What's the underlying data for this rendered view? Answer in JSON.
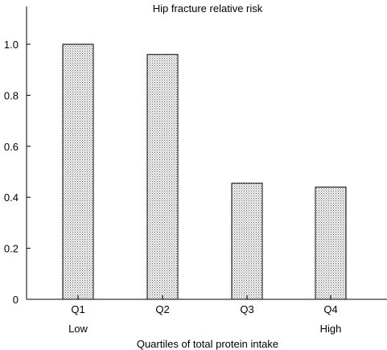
{
  "chart_data": {
    "type": "bar",
    "title": "Hip fracture relative risk",
    "xlabel": "Quartiles of total protein intake",
    "ylabel": "",
    "categories": [
      "Q1",
      "Q2",
      "Q3",
      "Q4"
    ],
    "category_sublabels": [
      "Low",
      "",
      "",
      "High"
    ],
    "values": [
      1.0,
      0.96,
      0.455,
      0.44
    ],
    "ylim": [
      0,
      1.1
    ],
    "yticks": [
      0,
      0.2,
      0.4,
      0.6,
      0.8,
      1.0
    ],
    "ytick_labels": [
      "0",
      "0.2",
      "0.4",
      "0.6",
      "0.8",
      "1.0"
    ],
    "grid": false,
    "legend": "none",
    "bar_fill": "stippled gray",
    "colors": {
      "bar_fill": "#c8c8c8",
      "bar_stroke": "#000000",
      "axis": "#000000"
    }
  }
}
